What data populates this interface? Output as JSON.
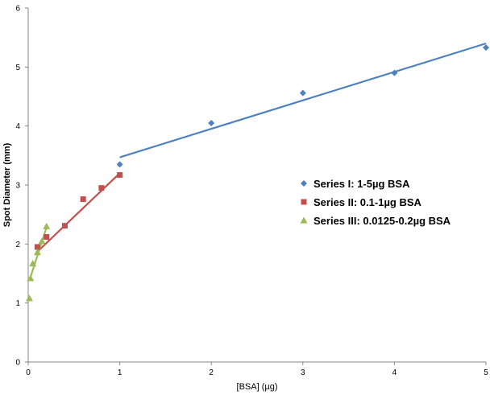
{
  "chart_data": {
    "type": "scatter",
    "xlabel": "[BSA] (µg)",
    "ylabel": "Spot Diameter (mm)",
    "xlim": [
      0,
      5
    ],
    "ylim": [
      0,
      6
    ],
    "x_ticks": [
      "0",
      "1",
      "2",
      "3",
      "4",
      "5"
    ],
    "y_ticks": [
      "0",
      "1",
      "2",
      "3",
      "4",
      "5",
      "6"
    ],
    "grid": false,
    "legend_position": "right",
    "series": [
      {
        "name": "Series I: 1-5µg BSA",
        "marker": "diamond",
        "color": "#4F81BD",
        "x": [
          1,
          2,
          3,
          4,
          5
        ],
        "y": [
          3.35,
          4.05,
          4.56,
          4.9,
          5.33
        ],
        "trendline": {
          "x": [
            1,
            5
          ],
          "y": [
            3.47,
            5.4
          ]
        }
      },
      {
        "name": "Series II: 0.1-1µg BSA",
        "marker": "square",
        "color": "#C0504D",
        "x": [
          0.1,
          0.2,
          0.4,
          0.6,
          0.8,
          1.0
        ],
        "y": [
          1.95,
          2.12,
          2.31,
          2.76,
          2.95,
          3.17
        ],
        "trendline": {
          "x": [
            0.1,
            1.0
          ],
          "y": [
            1.87,
            3.2
          ]
        }
      },
      {
        "name": "Series III: 0.0125-0.2µg BSA",
        "marker": "triangle",
        "color": "#9BBB59",
        "x": [
          0.0125,
          0.025,
          0.05,
          0.1,
          0.15,
          0.2
        ],
        "y": [
          1.08,
          1.42,
          1.67,
          1.86,
          2.05,
          2.3
        ],
        "trendline": {
          "x": [
            0.0125,
            0.2
          ],
          "y": [
            1.38,
            2.28
          ]
        }
      }
    ]
  }
}
